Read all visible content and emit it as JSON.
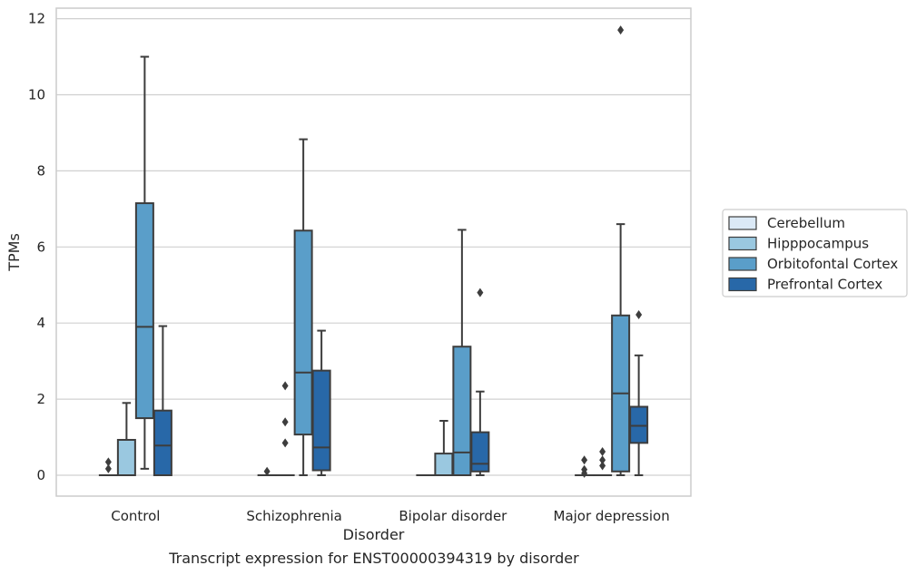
{
  "caption": "Transcript expression for ENST00000394319 by disorder",
  "chart_data": {
    "type": "box",
    "xlabel": "Disorder",
    "ylabel": "TPMs",
    "ylim": [
      -0.55,
      12.3
    ],
    "yticks": [
      0,
      2,
      4,
      6,
      8,
      10,
      12
    ],
    "grid": true,
    "legend_position": "right",
    "categories": [
      "Control",
      "Schizophrenia",
      "Bipolar disorder",
      "Major depression"
    ],
    "series": [
      {
        "name": "Cerebellum",
        "color": "#dbe9f6",
        "boxes": [
          {
            "min": 0,
            "q1": 0,
            "median": 0,
            "q3": 0,
            "max": 0,
            "outliers": [
              0.17,
              0.35
            ]
          },
          {
            "min": 0,
            "q1": 0,
            "median": 0,
            "q3": 0,
            "max": 0,
            "outliers": [
              0.1
            ]
          },
          {
            "min": 0,
            "q1": 0,
            "median": 0,
            "q3": 0,
            "max": 0,
            "outliers": []
          },
          {
            "min": 0,
            "q1": 0,
            "median": 0,
            "q3": 0,
            "max": 0,
            "outliers": [
              0.05,
              0.15,
              0.4
            ]
          }
        ]
      },
      {
        "name": "Hipppocampus",
        "color": "#9ac8e0",
        "boxes": [
          {
            "min": 0,
            "q1": 0,
            "median": 0,
            "q3": 0.93,
            "max": 1.9,
            "outliers": []
          },
          {
            "min": 0,
            "q1": 0,
            "median": 0,
            "q3": 0,
            "max": 0,
            "outliers": [
              0.85,
              1.4,
              2.35
            ]
          },
          {
            "min": 0,
            "q1": 0,
            "median": 0,
            "q3": 0.57,
            "max": 1.43,
            "outliers": []
          },
          {
            "min": 0,
            "q1": 0,
            "median": 0,
            "q3": 0,
            "max": 0,
            "outliers": [
              0.25,
              0.4,
              0.62
            ]
          }
        ]
      },
      {
        "name": "Orbitofontal Cortex",
        "color": "#5a9ec9",
        "boxes": [
          {
            "min": 0.17,
            "q1": 1.5,
            "median": 3.9,
            "q3": 7.15,
            "max": 11.0,
            "outliers": []
          },
          {
            "min": 0,
            "q1": 1.07,
            "median": 2.7,
            "q3": 6.43,
            "max": 8.83,
            "outliers": []
          },
          {
            "min": 0,
            "q1": 0,
            "median": 0.6,
            "q3": 3.38,
            "max": 6.45,
            "outliers": []
          },
          {
            "min": 0,
            "q1": 0.1,
            "median": 2.15,
            "q3": 4.2,
            "max": 6.6,
            "outliers": [
              11.7
            ]
          }
        ]
      },
      {
        "name": "Prefrontal Cortex",
        "color": "#2868a8",
        "boxes": [
          {
            "min": 0,
            "q1": 0,
            "median": 0.78,
            "q3": 1.7,
            "max": 3.92,
            "outliers": []
          },
          {
            "min": 0,
            "q1": 0.13,
            "median": 0.73,
            "q3": 2.75,
            "max": 3.8,
            "outliers": []
          },
          {
            "min": 0,
            "q1": 0.1,
            "median": 0.3,
            "q3": 1.13,
            "max": 2.2,
            "outliers": [
              4.8
            ]
          },
          {
            "min": 0,
            "q1": 0.85,
            "median": 1.3,
            "q3": 1.8,
            "max": 3.15,
            "outliers": [
              4.22
            ]
          }
        ]
      }
    ]
  }
}
